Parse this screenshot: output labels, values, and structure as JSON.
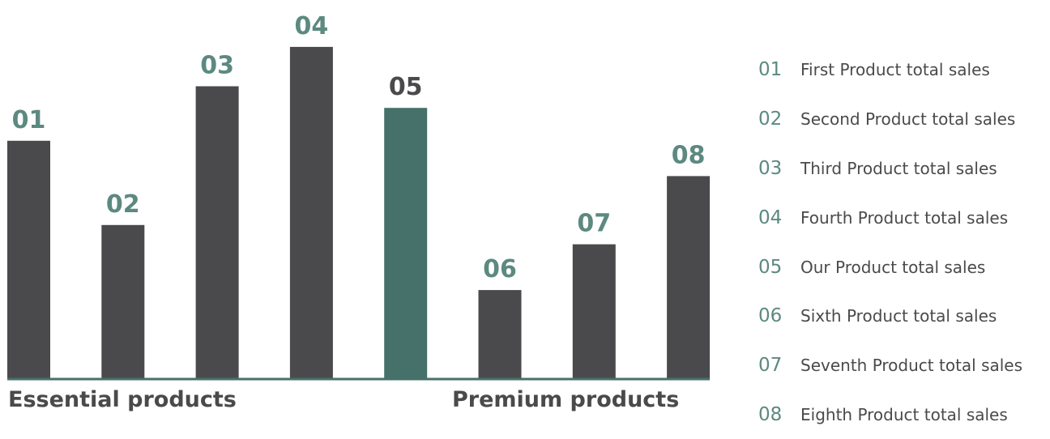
{
  "chart_data": {
    "type": "bar",
    "categories": [
      "01",
      "02",
      "03",
      "04",
      "05",
      "06",
      "07",
      "08"
    ],
    "values": [
      297,
      192,
      365,
      414,
      338,
      111,
      168,
      253
    ],
    "highlight_index": 4,
    "ylim": [
      0,
      420
    ],
    "grid": false,
    "legend_position": "right",
    "colors": {
      "bar": "#4a4a4c",
      "highlight_bar": "#46716a",
      "label_teal": "#5c8980",
      "label_dark": "#4a4a4c",
      "baseline": "#46716a"
    },
    "label_colors": [
      "teal",
      "teal",
      "teal",
      "teal",
      "dark",
      "teal",
      "teal",
      "teal"
    ],
    "group_labels": [
      "Essential products",
      "Premium products"
    ]
  },
  "legend": {
    "items": [
      {
        "num": "01",
        "text": "First Product total sales"
      },
      {
        "num": "02",
        "text": "Second Product total sales"
      },
      {
        "num": "03",
        "text": "Third Product total sales"
      },
      {
        "num": "04",
        "text": "Fourth Product total sales"
      },
      {
        "num": "05",
        "text": "Our Product total sales"
      },
      {
        "num": "06",
        "text": "Sixth Product total sales"
      },
      {
        "num": "07",
        "text": "Seventh Product total sales"
      },
      {
        "num": "08",
        "text": "Eighth Product total sales"
      }
    ]
  }
}
